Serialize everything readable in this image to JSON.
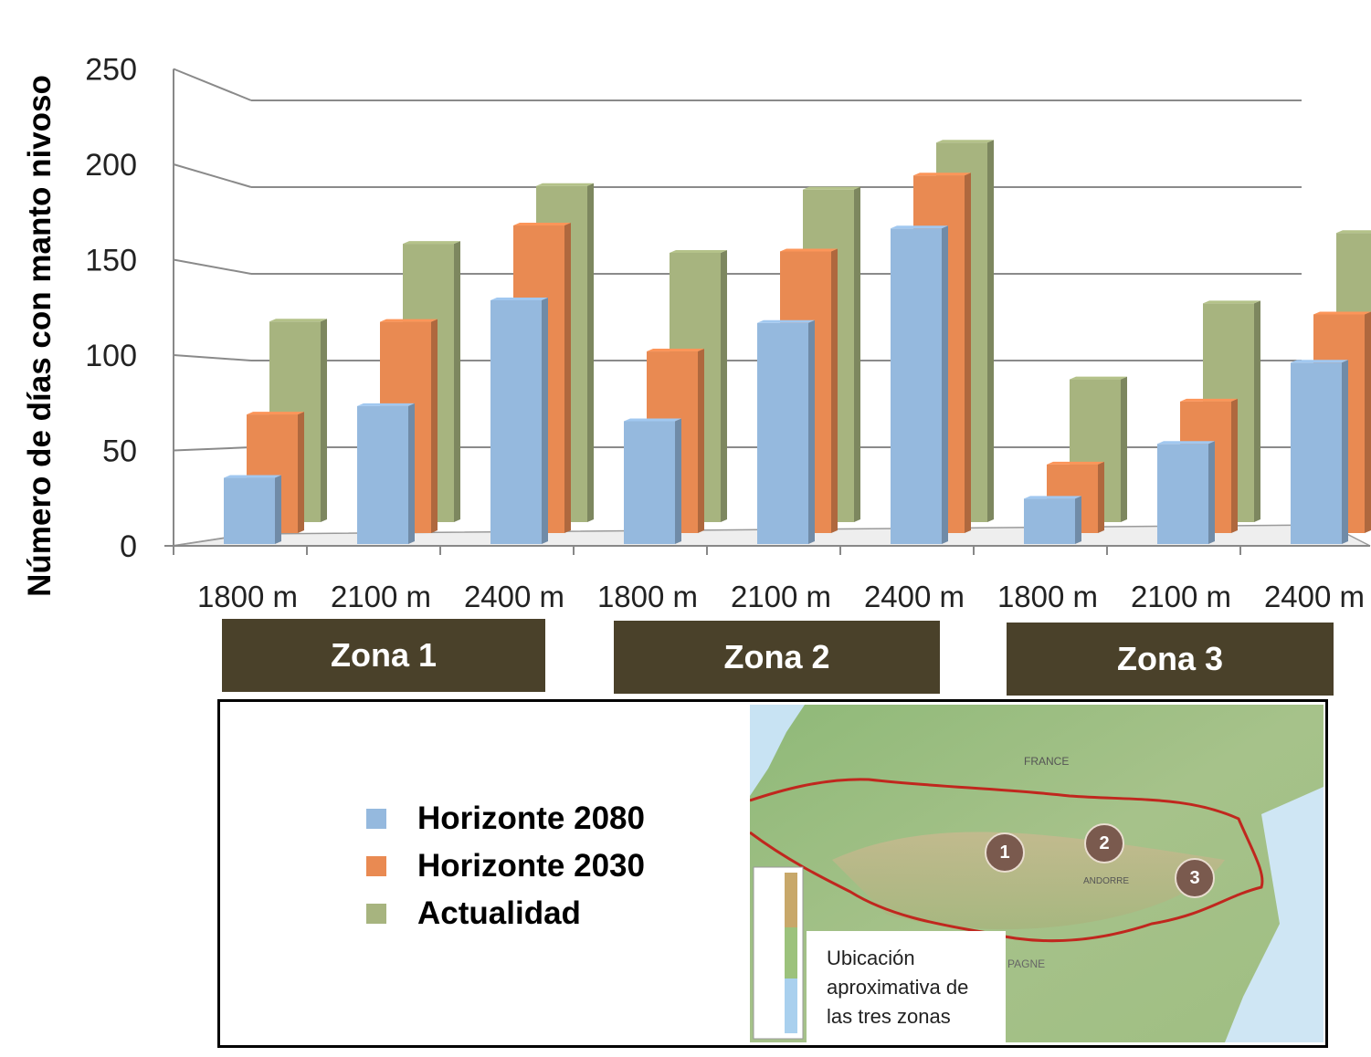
{
  "chart_data": {
    "type": "bar",
    "ylabel": "Número de días con manto nivoso",
    "ylim": [
      0,
      250
    ],
    "yticks": [
      "0",
      "50",
      "100",
      "150",
      "200",
      "250"
    ],
    "categories": [
      "1800 m",
      "2100 m",
      "2400 m",
      "1800 m",
      "2100 m",
      "2400 m",
      "1800 m",
      "2100 m",
      "2400 m"
    ],
    "groups": [
      {
        "label": "Zona 1",
        "span": [
          0,
          2
        ]
      },
      {
        "label": "Zona 2",
        "span": [
          3,
          5
        ]
      },
      {
        "label": "Zona 3",
        "span": [
          6,
          8
        ]
      }
    ],
    "series": [
      {
        "name": "Horizonte 2080",
        "color": "#95b9de",
        "values": [
          35,
          73,
          129,
          65,
          117,
          167,
          24,
          53,
          96
        ]
      },
      {
        "name": "Horizonte 2030",
        "color": "#e98a52",
        "values": [
          64,
          114,
          166,
          98,
          152,
          193,
          37,
          71,
          118
        ]
      },
      {
        "name": "Actualidad",
        "color": "#a7b47f",
        "values": [
          111,
          154,
          186,
          149,
          184,
          210,
          79,
          121,
          160
        ]
      }
    ],
    "grid": true,
    "legend_position": "bottom-left"
  },
  "zones": [
    "Zona 1",
    "Zona 2",
    "Zona 3"
  ],
  "legend": [
    {
      "label": "Horizonte 2080",
      "color": "#95b9de"
    },
    {
      "label": "Horizonte 2030",
      "color": "#e98a52"
    },
    {
      "label": "Actualidad",
      "color": "#a7b47f"
    }
  ],
  "map": {
    "caption_lines": [
      "Ubicación",
      "aproximativa de",
      "las tres zonas"
    ],
    "label_country": "FRANCE",
    "label_andorra": "ANDORRE",
    "label_spain": "PAGNE",
    "markers": [
      "1",
      "2",
      "3"
    ]
  }
}
